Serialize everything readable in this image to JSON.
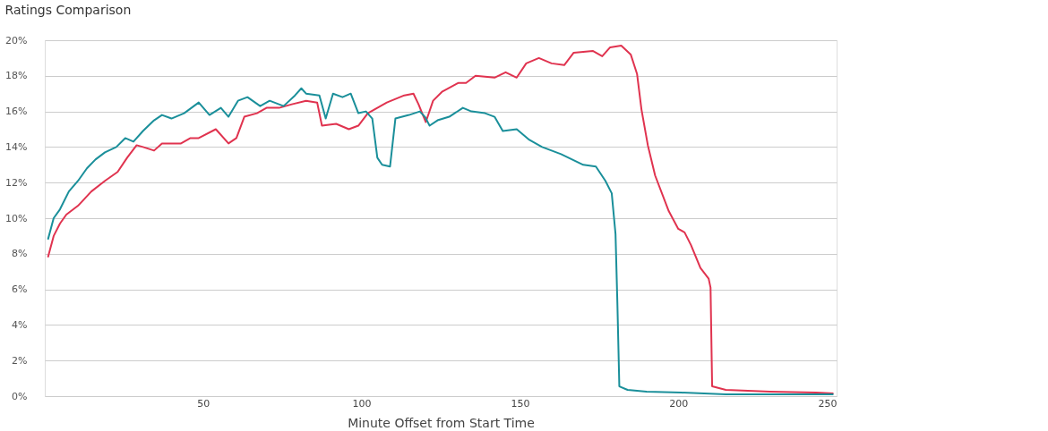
{
  "chart_data": {
    "type": "line",
    "title": "Ratings Comparison",
    "xlabel": "Minute Offset from Start Time",
    "xlim": [
      0,
      250
    ],
    "xticks": [
      50,
      100,
      150,
      200,
      250
    ],
    "ylim": [
      0,
      20
    ],
    "yticks": [
      {
        "value": 0,
        "label": "0%"
      },
      {
        "value": 2,
        "label": "2%"
      },
      {
        "value": 4,
        "label": "4%"
      },
      {
        "value": 6,
        "label": "6%"
      },
      {
        "value": 8,
        "label": "8%"
      },
      {
        "value": 10,
        "label": "10%"
      },
      {
        "value": 12,
        "label": "12%"
      },
      {
        "value": 14,
        "label": "14%"
      },
      {
        "value": 16,
        "label": "16%"
      },
      {
        "value": 18,
        "label": "18%"
      },
      {
        "value": 20,
        "label": "20%"
      }
    ],
    "grid": "y",
    "legend": false,
    "marker": "none",
    "line_style": "solid",
    "series": [
      {
        "color": "#e0334f",
        "x": [
          1,
          2.8,
          4.8,
          6.8,
          10.5,
          14.7,
          19,
          23,
          26,
          29,
          31,
          34.5,
          37,
          43,
          46,
          48.6,
          54,
          58,
          60.5,
          63,
          67,
          70,
          74,
          78,
          82.5,
          86,
          87.5,
          92,
          96,
          99,
          102,
          108,
          113.5,
          116.4,
          118,
          120.3,
          122.6,
          125.4,
          130.5,
          133,
          136,
          142,
          145.5,
          149,
          152,
          156,
          160,
          164,
          167,
          173,
          176,
          178.5,
          182,
          185,
          187,
          188.4,
          190.4,
          192.7,
          197,
          200,
          202,
          204,
          207,
          209.6,
          210.2,
          210.7,
          215,
          229,
          243.5,
          249
        ],
        "values": [
          7.8,
          9.0,
          9.7,
          10.2,
          10.7,
          11.5,
          12.1,
          12.6,
          13.4,
          14.1,
          14.0,
          13.8,
          14.2,
          14.2,
          14.5,
          14.5,
          15.0,
          14.2,
          14.5,
          15.7,
          15.9,
          16.2,
          16.2,
          16.4,
          16.6,
          16.5,
          15.2,
          15.3,
          15.0,
          15.2,
          15.9,
          16.5,
          16.9,
          17.0,
          16.4,
          15.4,
          16.6,
          17.1,
          17.6,
          17.6,
          18.0,
          17.9,
          18.2,
          17.9,
          18.7,
          19.0,
          18.7,
          18.6,
          19.3,
          19.4,
          19.1,
          19.6,
          19.7,
          19.2,
          18.1,
          16.1,
          14.1,
          12.4,
          10.4,
          9.4,
          9.2,
          8.5,
          7.2,
          6.6,
          6.1,
          0.55,
          0.35,
          0.25,
          0.2,
          0.15
        ]
      },
      {
        "color": "#1a8f9a",
        "x": [
          1,
          2.8,
          4.8,
          7.6,
          10.5,
          13.3,
          16,
          19,
          22.6,
          25.4,
          28,
          31,
          34.5,
          37,
          40,
          44,
          48.6,
          52,
          55.6,
          58,
          61,
          64,
          68,
          71,
          75.4,
          79,
          81,
          82.5,
          86.7,
          88.7,
          91,
          94,
          96.6,
          99,
          101.4,
          103.4,
          105,
          106.5,
          109,
          110.7,
          115,
          118.4,
          120,
          121.5,
          124,
          127.7,
          132,
          134.7,
          139,
          142,
          144.6,
          149,
          153,
          157,
          163,
          170,
          174,
          177,
          179,
          180.2,
          180.8,
          181.4,
          184,
          190,
          201,
          215,
          249
        ],
        "values": [
          8.8,
          10.0,
          10.5,
          11.5,
          12.1,
          12.8,
          13.3,
          13.7,
          14.0,
          14.5,
          14.3,
          14.9,
          15.5,
          15.8,
          15.6,
          15.9,
          16.5,
          15.8,
          16.2,
          15.7,
          16.6,
          16.8,
          16.3,
          16.6,
          16.3,
          16.9,
          17.3,
          17.0,
          16.9,
          15.6,
          17.0,
          16.8,
          17.0,
          15.9,
          16.0,
          15.6,
          13.4,
          13.0,
          12.9,
          15.6,
          15.8,
          16.0,
          15.7,
          15.2,
          15.5,
          15.7,
          16.2,
          16.0,
          15.9,
          15.7,
          14.9,
          15.0,
          14.4,
          14.0,
          13.6,
          13.0,
          12.9,
          12.1,
          11.4,
          9.1,
          5.1,
          0.55,
          0.35,
          0.25,
          0.2,
          0.1,
          0.1
        ]
      }
    ]
  }
}
